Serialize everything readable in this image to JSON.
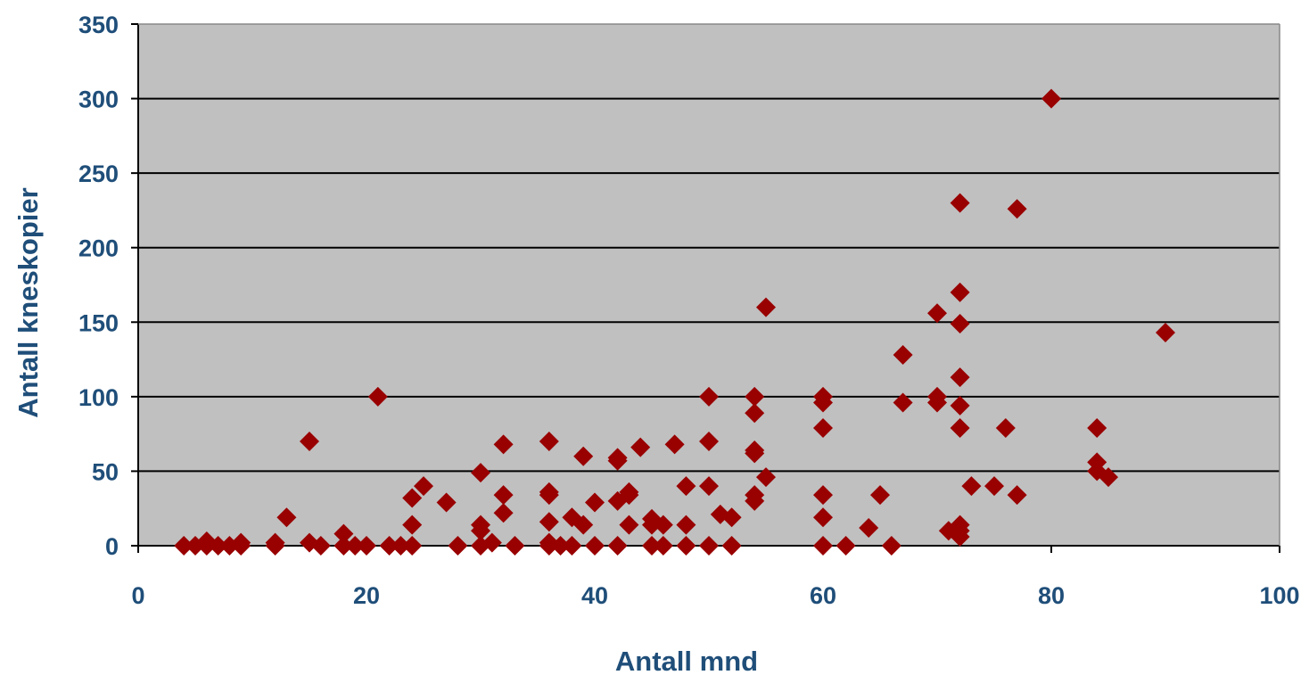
{
  "chart_data": {
    "type": "scatter",
    "title": "",
    "xlabel": "Antall mnd",
    "ylabel": "Antall kneskopier",
    "xlim": [
      0,
      100
    ],
    "ylim": [
      0,
      350
    ],
    "xticks": [
      0,
      20,
      40,
      60,
      80,
      100
    ],
    "yticks": [
      0,
      50,
      100,
      150,
      200,
      250,
      300,
      350
    ],
    "xtick_labels": [
      "0",
      "20",
      "40",
      "60",
      "80",
      "100"
    ],
    "ytick_labels": [
      "0",
      "50",
      "100",
      "150",
      "200",
      "250",
      "300",
      "350"
    ],
    "grid": "horizontal",
    "legend": "none",
    "colors": {
      "plot_background": "#c0c0c0",
      "marker": "#990000",
      "gridline": "#000000",
      "axis_text": "#1f4e79"
    },
    "marker": "diamond",
    "points": [
      [
        4,
        0
      ],
      [
        5,
        0
      ],
      [
        6,
        0
      ],
      [
        6,
        3
      ],
      [
        7,
        0
      ],
      [
        8,
        0
      ],
      [
        9,
        0
      ],
      [
        9,
        2
      ],
      [
        12,
        0
      ],
      [
        12,
        2
      ],
      [
        13,
        19
      ],
      [
        15,
        70
      ],
      [
        15,
        2
      ],
      [
        16,
        0
      ],
      [
        18,
        8
      ],
      [
        18,
        0
      ],
      [
        19,
        0
      ],
      [
        20,
        0
      ],
      [
        21,
        100
      ],
      [
        22,
        0
      ],
      [
        23,
        0
      ],
      [
        24,
        0
      ],
      [
        24,
        14
      ],
      [
        24,
        32
      ],
      [
        25,
        40
      ],
      [
        27,
        29
      ],
      [
        28,
        0
      ],
      [
        30,
        49
      ],
      [
        30,
        0
      ],
      [
        30,
        10
      ],
      [
        30,
        14
      ],
      [
        31,
        2
      ],
      [
        32,
        68
      ],
      [
        32,
        34
      ],
      [
        32,
        22
      ],
      [
        33,
        0
      ],
      [
        36,
        70
      ],
      [
        36,
        36
      ],
      [
        36,
        34
      ],
      [
        36,
        16
      ],
      [
        36,
        2
      ],
      [
        36,
        0
      ],
      [
        37,
        0
      ],
      [
        38,
        0
      ],
      [
        38,
        19
      ],
      [
        39,
        60
      ],
      [
        39,
        14
      ],
      [
        40,
        29
      ],
      [
        40,
        0
      ],
      [
        42,
        59
      ],
      [
        42,
        57
      ],
      [
        42,
        30
      ],
      [
        42,
        0
      ],
      [
        43,
        34
      ],
      [
        43,
        36
      ],
      [
        43,
        14
      ],
      [
        44,
        66
      ],
      [
        45,
        0
      ],
      [
        45,
        18
      ],
      [
        45,
        14
      ],
      [
        46,
        0
      ],
      [
        46,
        14
      ],
      [
        47,
        68
      ],
      [
        48,
        40
      ],
      [
        48,
        14
      ],
      [
        48,
        0
      ],
      [
        50,
        100
      ],
      [
        50,
        70
      ],
      [
        50,
        40
      ],
      [
        50,
        0
      ],
      [
        51,
        21
      ],
      [
        52,
        19
      ],
      [
        52,
        0
      ],
      [
        54,
        100
      ],
      [
        54,
        89
      ],
      [
        54,
        64
      ],
      [
        54,
        62
      ],
      [
        54,
        34
      ],
      [
        54,
        30
      ],
      [
        55,
        160
      ],
      [
        55,
        46
      ],
      [
        60,
        100
      ],
      [
        60,
        96
      ],
      [
        60,
        79
      ],
      [
        60,
        34
      ],
      [
        60,
        19
      ],
      [
        60,
        0
      ],
      [
        62,
        0
      ],
      [
        64,
        12
      ],
      [
        65,
        34
      ],
      [
        66,
        0
      ],
      [
        67,
        128
      ],
      [
        67,
        96
      ],
      [
        70,
        156
      ],
      [
        70,
        100
      ],
      [
        70,
        96
      ],
      [
        71,
        10
      ],
      [
        72,
        230
      ],
      [
        72,
        170
      ],
      [
        72,
        149
      ],
      [
        72,
        113
      ],
      [
        72,
        94
      ],
      [
        72,
        79
      ],
      [
        72,
        14
      ],
      [
        72,
        10
      ],
      [
        72,
        6
      ],
      [
        73,
        40
      ],
      [
        75,
        40
      ],
      [
        76,
        79
      ],
      [
        77,
        226
      ],
      [
        77,
        34
      ],
      [
        80,
        300
      ],
      [
        84,
        79
      ],
      [
        84,
        56
      ],
      [
        84,
        50
      ],
      [
        85,
        46
      ],
      [
        90,
        143
      ]
    ]
  }
}
